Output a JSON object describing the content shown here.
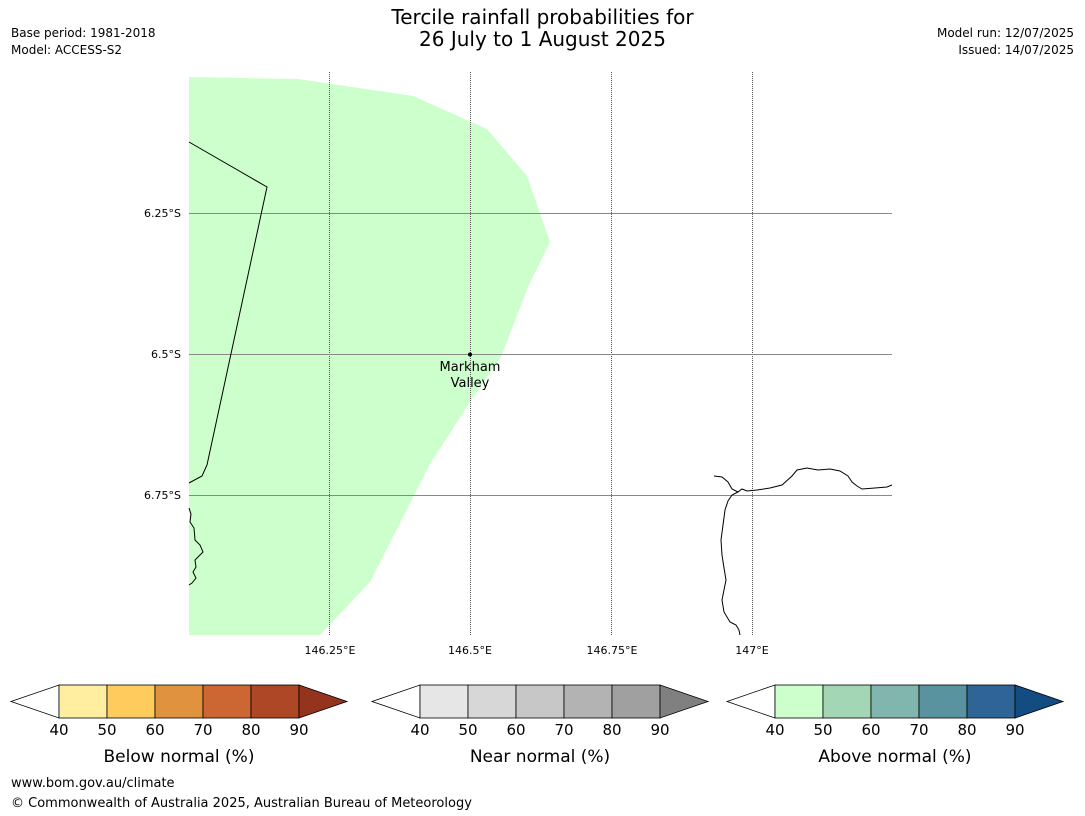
{
  "header": {
    "title_line1": "Tercile rainfall probabilities for",
    "title_line2": "26 July to 1 August 2025",
    "base_period": "Base period: 1981-2018",
    "model": "Model: ACCESS-S2",
    "model_run": "Model run: 12/07/2025",
    "issued": "Issued: 14/07/2025"
  },
  "map": {
    "lat_labels": [
      "6.25°S",
      "6.5°S",
      "6.75°S"
    ],
    "lon_labels": [
      "146.25°E",
      "146.5°E",
      "146.75°E",
      "147°E"
    ],
    "place": {
      "name_line1": "Markham",
      "name_line2": "Valley",
      "lon": 146.5,
      "lat": -6.5
    },
    "shaded_category": "above-normal-40-50",
    "shade_color": "#ccffcc"
  },
  "legends": [
    {
      "label": "Below normal (%)",
      "ticks": [
        "40",
        "50",
        "60",
        "70",
        "80",
        "90"
      ],
      "colors": [
        "#ffffff",
        "#ffeda0",
        "#fecc5c",
        "#e0923f",
        "#cc6633",
        "#ae4725",
        "#94341f"
      ]
    },
    {
      "label": "Near normal (%)",
      "ticks": [
        "40",
        "50",
        "60",
        "70",
        "80",
        "90"
      ],
      "colors": [
        "#ffffff",
        "#e6e6e6",
        "#d7d7d7",
        "#c7c7c7",
        "#b3b3b3",
        "#a0a0a0",
        "#808080"
      ]
    },
    {
      "label": "Above normal (%)",
      "ticks": [
        "40",
        "50",
        "60",
        "70",
        "80",
        "90"
      ],
      "colors": [
        "#ffffff",
        "#ccffcc",
        "#a2d6b5",
        "#81b6ae",
        "#5a93a0",
        "#2f6496",
        "#124c80"
      ]
    }
  ],
  "footer": {
    "url": "www.bom.gov.au/climate",
    "copyright": "© Commonwealth of Australia 2025, Australian Bureau of Meteorology"
  }
}
